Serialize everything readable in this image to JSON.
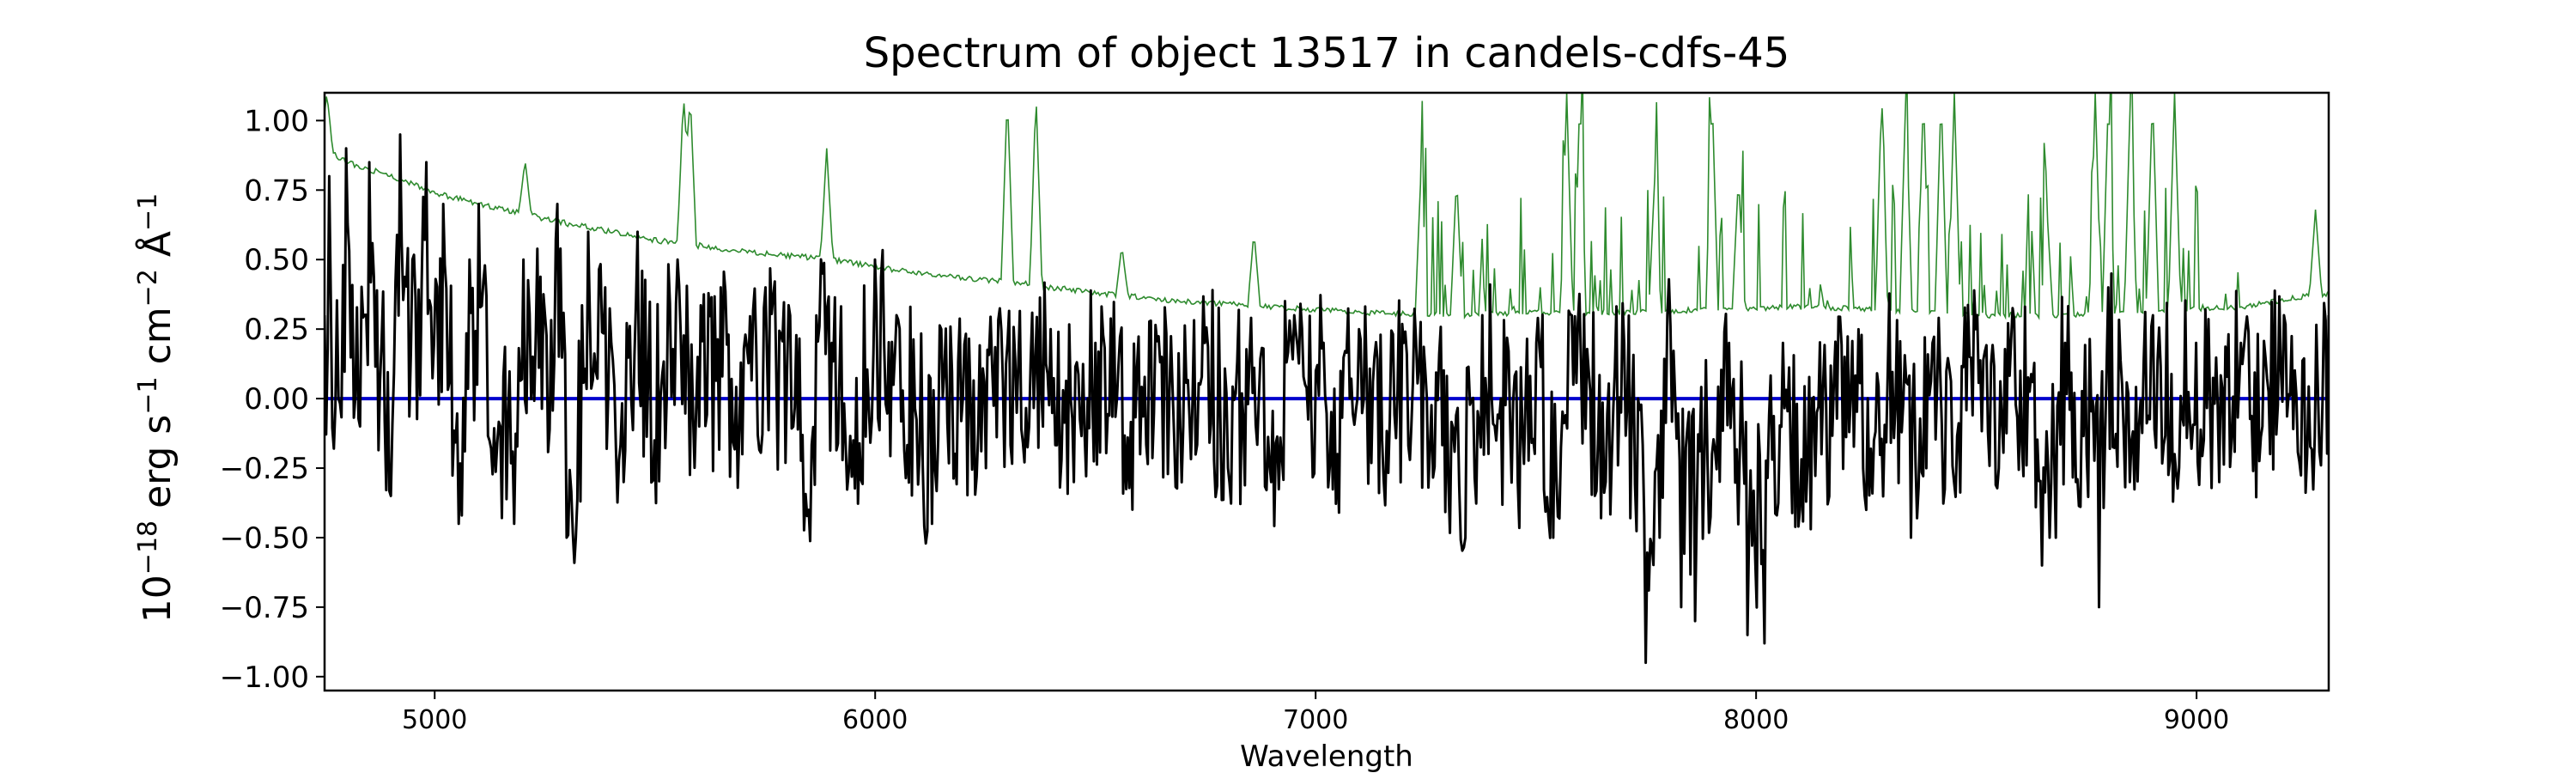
{
  "chart_data": {
    "type": "line",
    "title": "Spectrum of object 13517 in candels-cdfs-45",
    "xlabel": "Wavelength",
    "ylabel": "10−18 erg s−1 cm−2 Å−1",
    "ylabel_parts": {
      "base1": "10",
      "exp1": "−18",
      "erg": " erg s",
      "exp2": "−1",
      "cm": " cm",
      "exp3": "−2",
      "ang": " Å",
      "exp4": "−1"
    },
    "xlim": [
      4750,
      9300
    ],
    "ylim": [
      -1.05,
      1.1
    ],
    "grid": false,
    "x_ticks": [
      5000,
      6000,
      7000,
      8000,
      9000
    ],
    "x_tick_labels": [
      "5000",
      "6000",
      "7000",
      "8000",
      "9000"
    ],
    "y_ticks": [
      1.0,
      0.75,
      0.5,
      0.25,
      0.0,
      -0.25,
      -0.5,
      -0.75,
      -1.0
    ],
    "y_tick_labels": [
      "1.00",
      "0.75",
      "0.50",
      "0.25",
      "0.00",
      "−0.25",
      "−0.50",
      "−0.75",
      "−1.00"
    ],
    "colors": {
      "flux": "#000000",
      "error": "#2e8b2e",
      "zero": "#0000cd"
    },
    "series": [
      {
        "key": "flux",
        "description_only": true,
        "anchors": [
          [
            4750,
            0.3
          ],
          [
            4760,
            0.8
          ],
          [
            4780,
            0.0
          ],
          [
            4800,
            0.9
          ],
          [
            4830,
            -0.1
          ],
          [
            4850,
            0.85
          ],
          [
            4880,
            0.2
          ],
          [
            4900,
            -0.35
          ],
          [
            4920,
            0.95
          ],
          [
            4950,
            0.5
          ],
          [
            4980,
            0.85
          ],
          [
            5000,
            0.2
          ],
          [
            5020,
            0.7
          ],
          [
            5060,
            -0.42
          ],
          [
            5080,
            0.5
          ],
          [
            5100,
            0.7
          ],
          [
            5150,
            -0.1
          ],
          [
            5180,
            -0.45
          ],
          [
            5200,
            0.5
          ],
          [
            5250,
            0.3
          ],
          [
            5280,
            0.7
          ],
          [
            5300,
            -0.5
          ],
          [
            5320,
            -0.5
          ],
          [
            5350,
            0.6
          ],
          [
            5400,
            0.2
          ],
          [
            5430,
            -0.3
          ],
          [
            5460,
            0.6
          ],
          [
            5500,
            -0.15
          ],
          [
            5550,
            0.5
          ],
          [
            5600,
            -0.1
          ],
          [
            5650,
            0.4
          ],
          [
            5700,
            -0.2
          ],
          [
            5750,
            0.4
          ],
          [
            5800,
            0.1
          ],
          [
            5850,
            -0.4
          ],
          [
            5880,
            0.45
          ],
          [
            5900,
            0.2
          ],
          [
            5950,
            -0.15
          ],
          [
            6000,
            0.5
          ],
          [
            6050,
            0.3
          ],
          [
            6100,
            -0.2
          ],
          [
            6130,
            -0.45
          ],
          [
            6150,
            0.25
          ],
          [
            6200,
            0.0
          ],
          [
            6250,
            -0.25
          ],
          [
            6300,
            0.2
          ],
          [
            6350,
            -0.1
          ],
          [
            6400,
            0.25
          ],
          [
            6450,
            -0.3
          ],
          [
            6500,
            0.2
          ],
          [
            6550,
            0.0
          ],
          [
            6600,
            -0.2
          ],
          [
            6650,
            0.15
          ],
          [
            6700,
            -0.1
          ],
          [
            6750,
            0.2
          ],
          [
            6800,
            -0.25
          ],
          [
            6850,
            0.15
          ],
          [
            6900,
            -0.3
          ],
          [
            6950,
            0.3
          ],
          [
            7000,
            0.1
          ],
          [
            7050,
            -0.2
          ],
          [
            7100,
            0.25
          ],
          [
            7150,
            -0.15
          ],
          [
            7200,
            0.2
          ],
          [
            7250,
            0.1
          ],
          [
            7300,
            -0.3
          ],
          [
            7340,
            -0.5
          ],
          [
            7380,
            0.3
          ],
          [
            7420,
            0.0
          ],
          [
            7460,
            -0.3
          ],
          [
            7500,
            0.2
          ],
          [
            7540,
            -0.5
          ],
          [
            7580,
            0.3
          ],
          [
            7620,
            0.1
          ],
          [
            7660,
            -0.3
          ],
          [
            7700,
            0.2
          ],
          [
            7750,
            -0.95
          ],
          [
            7780,
            -0.5
          ],
          [
            7800,
            0.3
          ],
          [
            7830,
            -0.75
          ],
          [
            7860,
            -0.8
          ],
          [
            7900,
            -0.2
          ],
          [
            7940,
            0.2
          ],
          [
            7980,
            -0.85
          ],
          [
            8020,
            -0.88
          ],
          [
            8060,
            0.2
          ],
          [
            8100,
            -0.4
          ],
          [
            8150,
            -0.2
          ],
          [
            8200,
            0.15
          ],
          [
            8250,
            -0.4
          ],
          [
            8300,
            0.1
          ],
          [
            8350,
            -0.5
          ],
          [
            8400,
            0.2
          ],
          [
            8450,
            -0.3
          ],
          [
            8500,
            0.25
          ],
          [
            8550,
            -0.25
          ],
          [
            8600,
            0.1
          ],
          [
            8650,
            -0.6
          ],
          [
            8680,
            -0.5
          ],
          [
            8700,
            0.2
          ],
          [
            8750,
            -0.2
          ],
          [
            8780,
            -0.75
          ],
          [
            8800,
            0.4
          ],
          [
            8850,
            -0.3
          ],
          [
            8900,
            0.3
          ],
          [
            8950,
            -0.2
          ],
          [
            9000,
            0.2
          ],
          [
            9050,
            -0.3
          ],
          [
            9100,
            0.2
          ],
          [
            9150,
            -0.1
          ],
          [
            9200,
            0.3
          ],
          [
            9250,
            -0.2
          ],
          [
            9300,
            0.3
          ]
        ]
      },
      {
        "key": "error",
        "description_only": true,
        "baseline_anchors": [
          [
            4750,
            0.9
          ],
          [
            4800,
            0.85
          ],
          [
            4900,
            0.8
          ],
          [
            5000,
            0.74
          ],
          [
            5100,
            0.7
          ],
          [
            5300,
            0.63
          ],
          [
            5500,
            0.57
          ],
          [
            5700,
            0.53
          ],
          [
            5900,
            0.5
          ],
          [
            6100,
            0.45
          ],
          [
            6300,
            0.42
          ],
          [
            6500,
            0.38
          ],
          [
            6700,
            0.35
          ],
          [
            6900,
            0.33
          ],
          [
            7100,
            0.31
          ],
          [
            7300,
            0.3
          ],
          [
            7500,
            0.31
          ],
          [
            7700,
            0.31
          ],
          [
            7900,
            0.32
          ],
          [
            8100,
            0.33
          ],
          [
            8300,
            0.32
          ],
          [
            8500,
            0.3
          ],
          [
            8700,
            0.3
          ],
          [
            8900,
            0.32
          ],
          [
            9100,
            0.33
          ],
          [
            9300,
            0.38
          ]
        ],
        "spikes": [
          [
            4755,
            1.1
          ],
          [
            5205,
            0.86
          ],
          [
            5565,
            1.1
          ],
          [
            5580,
            1.1
          ],
          [
            5890,
            0.9
          ],
          [
            6300,
            1.1
          ],
          [
            6365,
            1.1
          ],
          [
            6560,
            0.55
          ],
          [
            6860,
            0.6
          ],
          [
            7240,
            0.85
          ],
          [
            7320,
            0.8
          ],
          [
            7570,
            1.1
          ],
          [
            7600,
            1.1
          ],
          [
            7770,
            0.8
          ],
          [
            7900,
            1.1
          ],
          [
            7960,
            0.8
          ],
          [
            8285,
            1.1
          ],
          [
            8340,
            1.1
          ],
          [
            8380,
            1.1
          ],
          [
            8420,
            1.1
          ],
          [
            8450,
            1.1
          ],
          [
            8660,
            0.69
          ],
          [
            8770,
            1.1
          ],
          [
            8800,
            1.1
          ],
          [
            8850,
            1.1
          ],
          [
            8900,
            1.1
          ],
          [
            8950,
            1.1
          ],
          [
            9270,
            0.68
          ]
        ]
      }
    ],
    "zero_line": 0.0
  }
}
